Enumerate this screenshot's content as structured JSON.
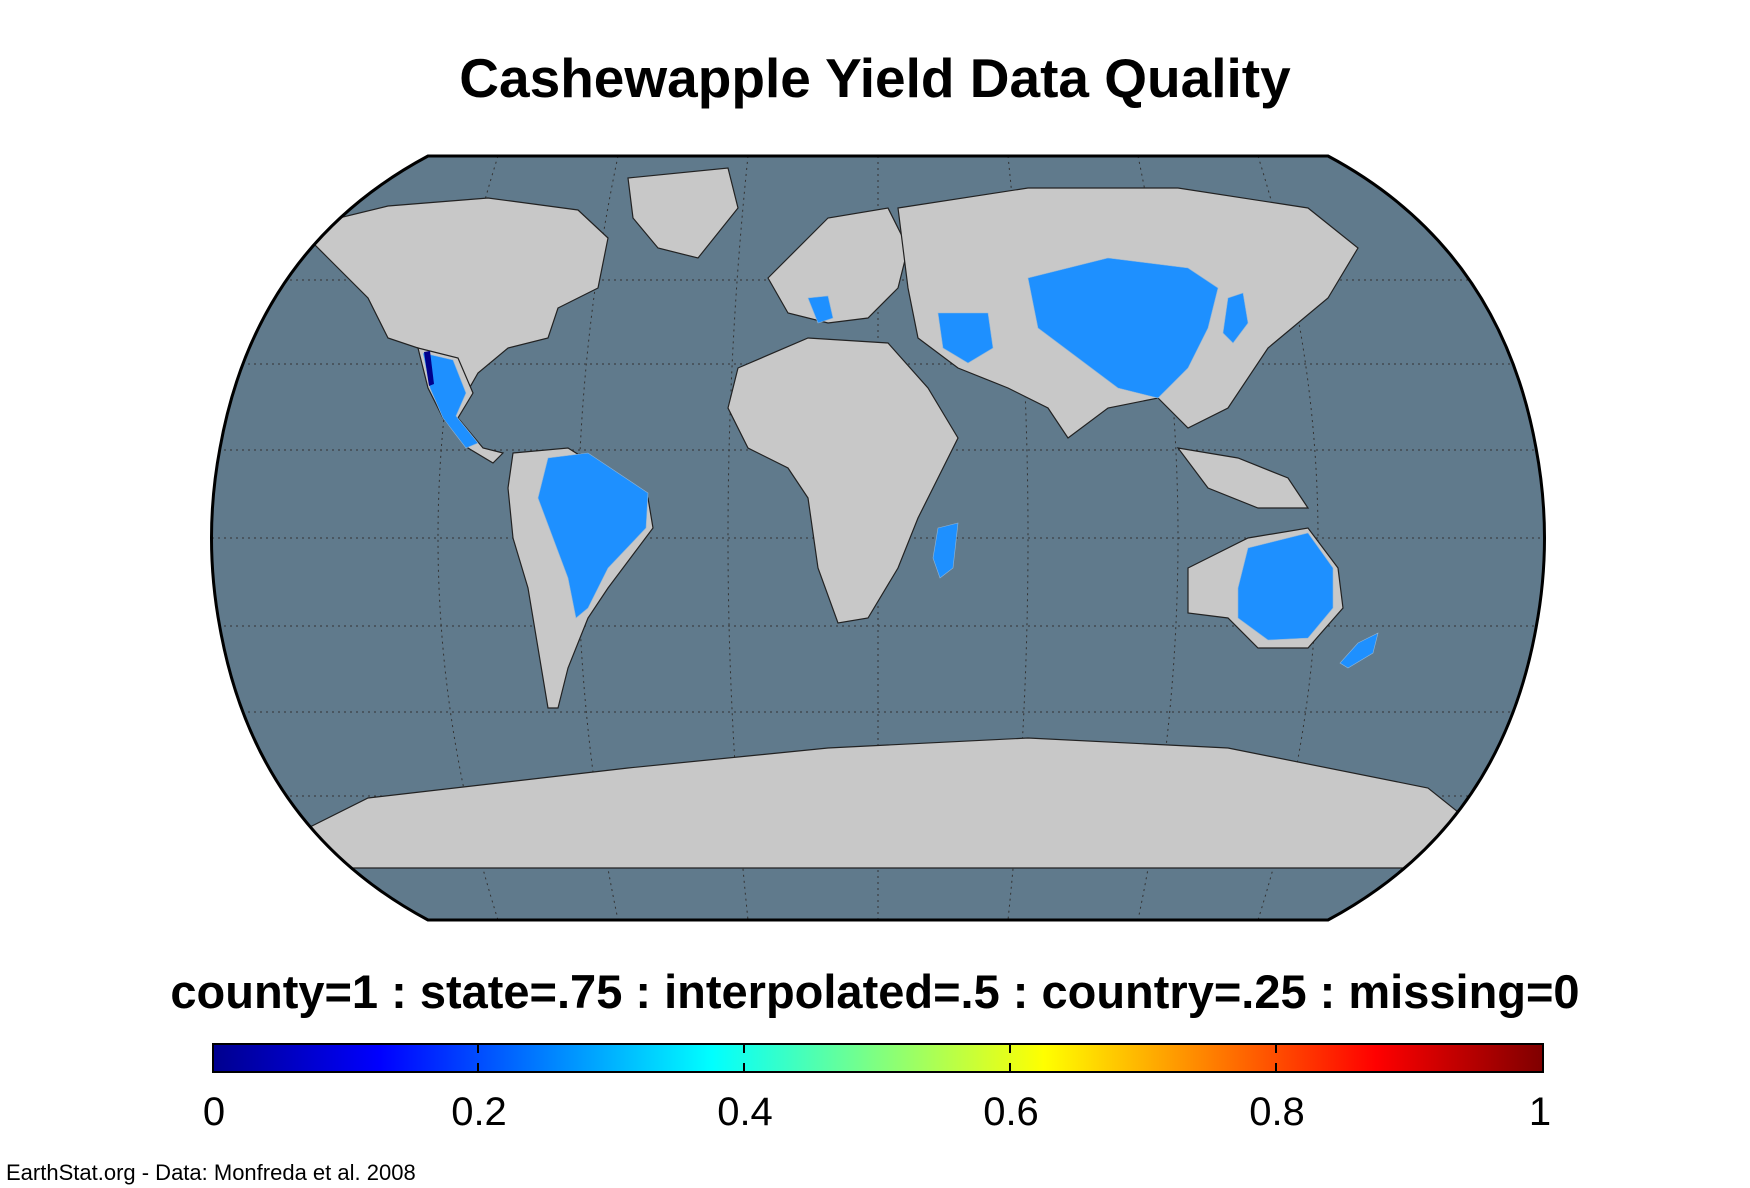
{
  "title": "Cashewapple Yield Data Quality",
  "legend": {
    "title": "county=1 : state=.75 : interpolated=.5 : country=.25 : missing=0",
    "ticks": [
      "0",
      "0.2",
      "0.4",
      "0.6",
      "0.8",
      "1"
    ],
    "colormap": "jet",
    "range": [
      0,
      1
    ]
  },
  "credit": "EarthStat.org - Data: Monfreda et al. 2008",
  "colors": {
    "ocean": "#607a8c",
    "land": "#c8c8c8",
    "border": "#222222",
    "country_quality": "#1e90ff",
    "county_quality": "#00008b"
  },
  "map": {
    "projection": "robinson",
    "graticule": "dotted",
    "regions_with_data": [
      {
        "name": "Mexico",
        "value": 0.25
      },
      {
        "name": "Texas border strip",
        "value": 1
      },
      {
        "name": "Brazil",
        "value": 0.25
      },
      {
        "name": "Italy",
        "value": 0.25
      },
      {
        "name": "Iran",
        "value": 0.25
      },
      {
        "name": "China",
        "value": 0.25
      },
      {
        "name": "Japan",
        "value": 0.25
      },
      {
        "name": "Madagascar",
        "value": 0.25
      },
      {
        "name": "Australia",
        "value": 0.25
      },
      {
        "name": "New Zealand",
        "value": 0.25
      }
    ]
  }
}
